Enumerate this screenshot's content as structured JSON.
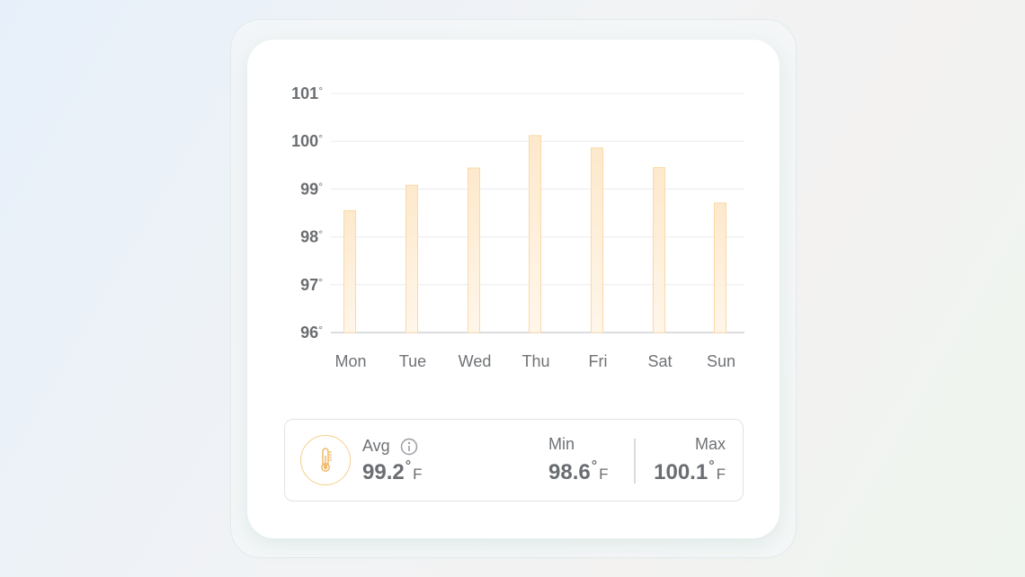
{
  "chart_data": {
    "type": "bar",
    "categories": [
      "Mon",
      "Tue",
      "Wed",
      "Thu",
      "Fri",
      "Sat",
      "Sun"
    ],
    "values": [
      98.55,
      99.08,
      99.44,
      100.12,
      99.86,
      99.45,
      98.71
    ],
    "ylim": [
      96,
      101
    ],
    "y_ticks": [
      "101°",
      "100°",
      "99°",
      "98°",
      "97°",
      "96°"
    ],
    "y_tick_values": [
      101,
      100,
      99,
      98,
      97,
      96
    ],
    "grid": true,
    "bar_color": "#fde9cc",
    "bar_stroke": "#fbd9a8"
  },
  "stats": {
    "avg_label": "Avg",
    "avg_value": "99.2",
    "min_label": "Min",
    "min_value": "98.6",
    "max_label": "Max",
    "max_value": "100.1",
    "degree_symbol": "°",
    "unit": "F"
  },
  "colors": {
    "accent": "#f6cf8e",
    "text": "#6a6d71"
  }
}
